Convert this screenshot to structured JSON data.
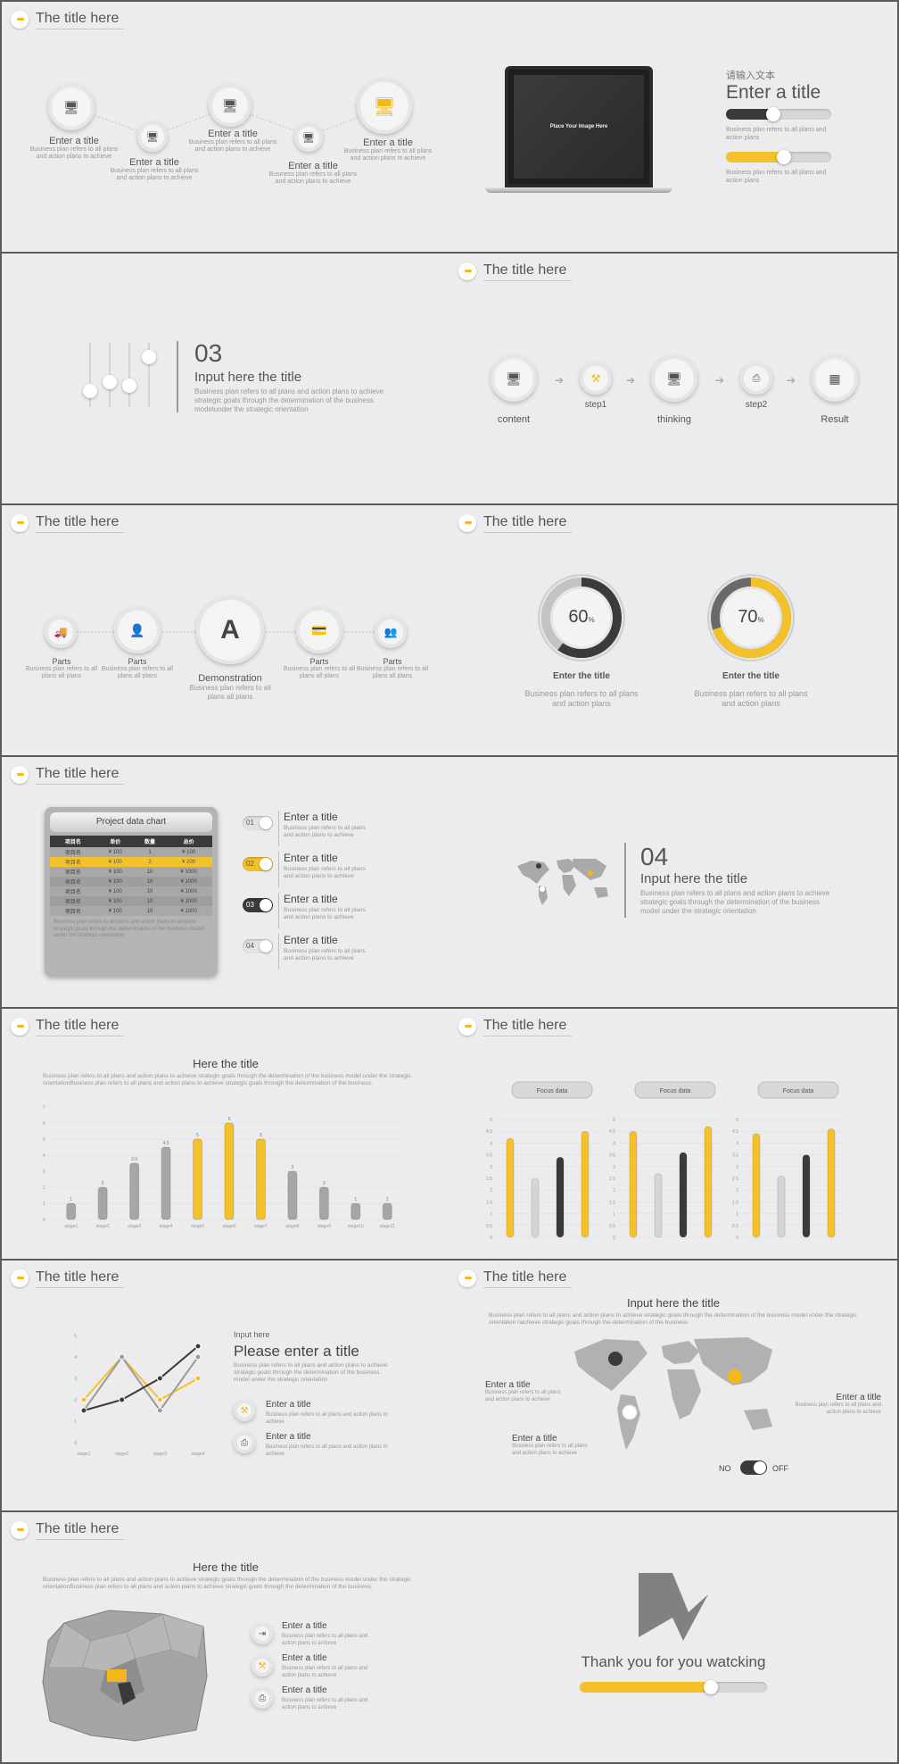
{
  "slide_title": "The title here",
  "s1": {
    "steps": [
      {
        "title": "Enter a title",
        "desc": "Business plan refers to all plans and action plans to achieve"
      },
      {
        "title": "Enter a title",
        "desc": "Business plan refers to all plans and action plans to achieve"
      },
      {
        "title": "Enter a title",
        "desc": "Business plan refers to all plans and action plans to achieve"
      },
      {
        "title": "Enter a title",
        "desc": "Business plan refers to all plans and action plans to achieve"
      },
      {
        "title": "Enter a title",
        "desc": "Business plan refers to all plans and action plans to achieve"
      }
    ]
  },
  "s2": {
    "placeholder": "Place Your Image Here",
    "cn_label": "请输入文本",
    "heading": "Enter a title",
    "desc1": "Business plan refers to all plans and action plans",
    "desc2": "Business plan refers to all plans and action plans",
    "slider1": 0.45,
    "slider2": 0.55
  },
  "s3": {
    "number": "03",
    "heading": "Input here the title",
    "desc": "Business plan refers to all plans and action plans to achieve strategic goals through the determination of the business modelunder the strategic orientation"
  },
  "s4": {
    "labels": [
      "content",
      "step1",
      "thinking",
      "step2",
      "Result"
    ]
  },
  "s5": {
    "items": [
      {
        "label": "Parts",
        "desc": "Business plan refers to all plans all plans"
      },
      {
        "label": "Parts",
        "desc": "Business plan refers to all plans all plans"
      },
      {
        "label": "Demonstration",
        "desc": "Business plan refers to all plans all plans"
      },
      {
        "label": "Parts",
        "desc": "Business plan refers to all plans all plans"
      },
      {
        "label": "Parts",
        "desc": "Business plan refers to all plans all plans"
      }
    ]
  },
  "s6": {
    "gauges": [
      {
        "value": "60",
        "unit": "%",
        "pct": 0.6,
        "title": "Enter the title",
        "desc": "Business plan refers to all plans and action plans"
      },
      {
        "value": "70",
        "unit": "%",
        "pct": 0.7,
        "title": "Enter the title",
        "desc": "Business plan refers to all plans and action plans"
      }
    ]
  },
  "s7": {
    "table_title": "Project data chart",
    "headers": [
      "项目名",
      "单价",
      "数量",
      "总价"
    ],
    "rows": [
      [
        "项目名",
        "¥ 100",
        "1",
        "¥ 100"
      ],
      [
        "项目名",
        "¥ 100",
        "2",
        "¥ 200"
      ],
      [
        "项目名",
        "¥ 100",
        "10",
        "¥ 1000"
      ],
      [
        "项目名",
        "¥ 100",
        "10",
        "¥ 1000"
      ],
      [
        "项目名",
        "¥ 100",
        "10",
        "¥ 1000"
      ],
      [
        "项目名",
        "¥ 100",
        "10",
        "¥ 1000"
      ],
      [
        "项目名",
        "¥ 100",
        "10",
        "¥ 1000"
      ]
    ],
    "note": "Business plan refers to all plans and action plans to achieve strategic goals through the determination of the business model under the strategic orientation",
    "toggles": [
      {
        "num": "01",
        "title": "Enter a title",
        "desc": "Business plan refers to all plans and action plans to achieve",
        "state": "off"
      },
      {
        "num": "02",
        "title": "Enter a title",
        "desc": "Business plan refers to all plans and action plans to achieve",
        "state": "on"
      },
      {
        "num": "03",
        "title": "Enter a title",
        "desc": "Business plan refers to all plans and action plans to achieve",
        "state": "dark"
      },
      {
        "num": "04",
        "title": "Enter a title",
        "desc": "Business plan refers to all plans and action plans to achieve",
        "state": "off"
      }
    ]
  },
  "s8": {
    "number": "04",
    "heading": "Input here the title",
    "desc": "Business plan refers to all plans and action plans to achieve strategic goals through the determination of the business model under the strategic orientation"
  },
  "s9": {
    "heading": "Here the title",
    "desc": "Business plan refers to all plans and action plans to achieve strategic goals through the determination of the business model under the strategic orientationBusiness plan refers to all plans and action plans to achieve strategic goals through the determination of the business.",
    "chart_data": {
      "type": "bar",
      "categories": [
        "stage1",
        "stage2",
        "stage3",
        "stage4",
        "stage5",
        "stage6",
        "stage7",
        "stage8",
        "stage9",
        "stage10",
        "stage11"
      ],
      "values": [
        1,
        2,
        3.5,
        4.5,
        5,
        6,
        5,
        3,
        2,
        1,
        1
      ],
      "value_labels": [
        "1",
        "2",
        "3.5",
        "4.5",
        "5",
        "6",
        "5",
        "3",
        "2",
        "1",
        "1"
      ],
      "highlighted": [
        false,
        false,
        false,
        false,
        true,
        true,
        true,
        false,
        false,
        false,
        false
      ],
      "ylim": [
        0,
        7
      ],
      "y_ticks": [
        "0",
        "1",
        "2",
        "3",
        "4",
        "5",
        "6",
        "7"
      ],
      "colors": {
        "gray": "#a6a6a8",
        "yellow": "#f3c22a"
      }
    }
  },
  "s10": {
    "chart_data": [
      {
        "type": "bar",
        "title": "Focus data",
        "values": [
          4.2,
          2.5,
          3.4,
          4.5
        ],
        "ylim": [
          0,
          5
        ],
        "y_ticks": [
          "0",
          "0.5",
          "1",
          "1.5",
          "2",
          "2.5",
          "3",
          "3.5",
          "4",
          "4.5",
          "5"
        ]
      },
      {
        "type": "bar",
        "title": "Focus data",
        "values": [
          4.5,
          2.7,
          3.6,
          4.7
        ],
        "ylim": [
          0,
          5
        ],
        "y_ticks": [
          "0",
          "0.5",
          "1",
          "1.5",
          "2",
          "2.5",
          "3",
          "3.5",
          "4",
          "4.5",
          "5"
        ]
      },
      {
        "type": "bar",
        "title": "Focus data",
        "values": [
          4.4,
          2.6,
          3.5,
          4.6
        ],
        "ylim": [
          0,
          5
        ],
        "y_ticks": [
          "0",
          "0.5",
          "1",
          "1.5",
          "2",
          "2.5",
          "3",
          "3.5",
          "4",
          "4.5",
          "5"
        ]
      }
    ]
  },
  "s11": {
    "chart_data": {
      "type": "line",
      "categories": [
        "stage1",
        "stage2",
        "stage3",
        "stage4"
      ],
      "series": [
        {
          "values": [
            2,
            4,
            2,
            3
          ]
        },
        {
          "values": [
            1.5,
            4,
            1.5,
            4
          ]
        },
        {
          "values": [
            1.5,
            2,
            3,
            4.5
          ]
        }
      ],
      "ylim": [
        0,
        5
      ],
      "y_ticks": [
        "0",
        "1",
        "2",
        "3",
        "4",
        "5"
      ]
    },
    "small": "Input here",
    "heading": "Please enter a title",
    "desc": "Business plan refers to all plans and action plans to achieve strategic goals through the determination of the business model under the strategic orientation",
    "items": [
      {
        "title": "Enter a title",
        "desc": "Business plan refers to all plans and action plans to achieve"
      },
      {
        "title": "Enter a title",
        "desc": "Business plan refers to all plans and action plans to achieve"
      }
    ]
  },
  "s12": {
    "heading": "Input here the title",
    "desc": "Business plan refers to all plans and action plans to achieve strategic goals through the determination of the business model under the strategic orientation  nachieve strategic goals through the determination of the business",
    "callouts": [
      {
        "title": "Enter a title",
        "desc": "Business plan refers to all plans and action plans to achieve"
      },
      {
        "title": "Enter a title",
        "desc": "Business plan refers to all plans and action plans to achieve"
      },
      {
        "title": "Enter a title",
        "desc": "Business plan refers to all plans and action plans to achieve"
      }
    ],
    "no_label": "NO",
    "off_label": "OFF"
  },
  "s13": {
    "heading": "Here the title",
    "desc": "Business plan refers to all plans and action plans to achieve strategic goals through the determination of the business model under the strategic orientationBusiness plan refers to all plans and action plans to achieve strategic goals through the determination of the business.",
    "items": [
      {
        "title": "Enter a title",
        "desc": "Business plan refers to all plans and action plans to achieve"
      },
      {
        "title": "Enter a title",
        "desc": "Business plan refers to all plans and action plans to achieve"
      },
      {
        "title": "Enter a title",
        "desc": "Business plan refers to all plans and action plans to achieve"
      }
    ]
  },
  "s14": {
    "thanks": "Thank you for you watcking",
    "progress": 0.7
  },
  "colors": {
    "accent": "#f3b81a",
    "dark": "#3a3a3c",
    "bg": "#ecebed",
    "border": "#5a5a5c"
  }
}
